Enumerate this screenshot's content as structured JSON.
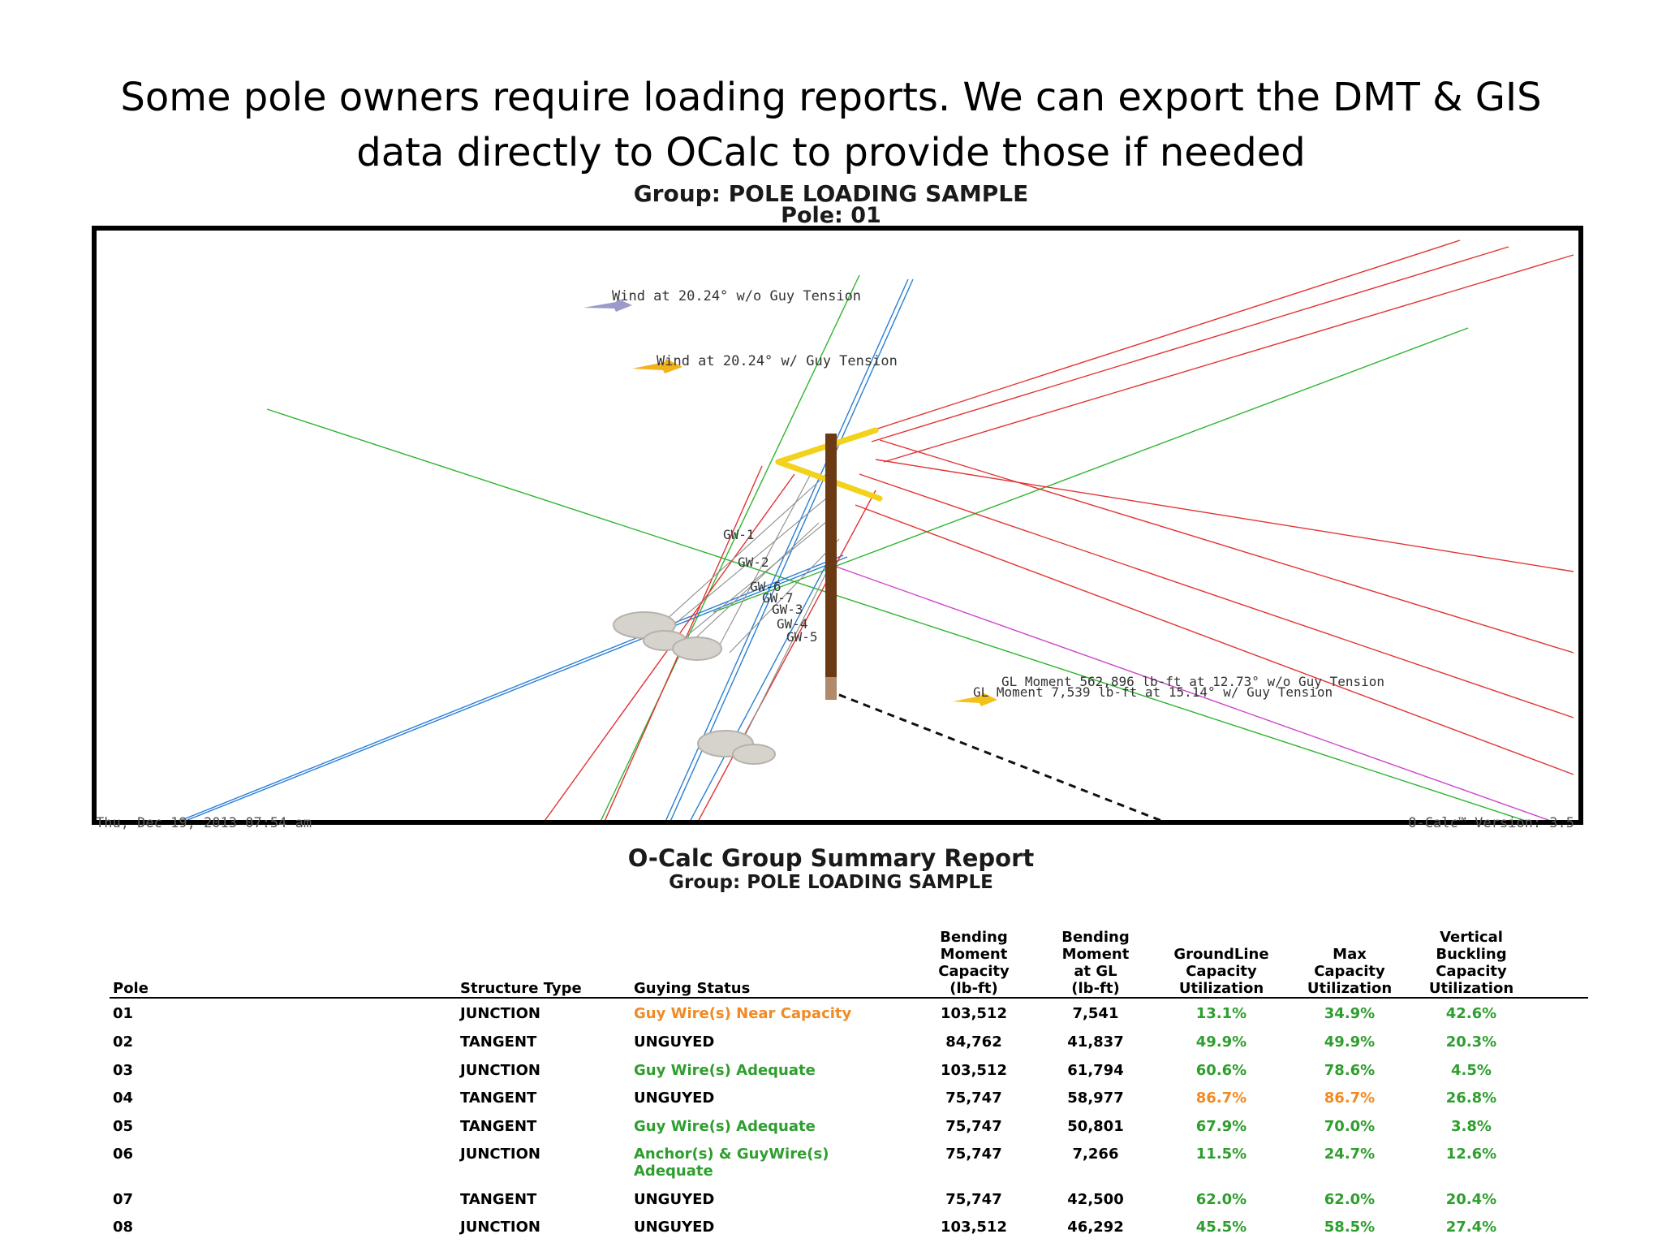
{
  "slide": {
    "title_line1": "Some pole owners require loading reports. We can export the DMT & GIS",
    "title_line2": "data directly to OCalc to provide those if needed"
  },
  "plot": {
    "group_label": "Group: POLE LOADING SAMPLE",
    "pole_label": "Pole: 01",
    "wind_without_guy": "Wind at 20.24° w/o Guy Tension",
    "wind_with_guy": "Wind at 20.24° w/ Guy Tension",
    "gl_moment_without_guy": "GL Moment 562,896 lb-ft at 12.73° w/o Guy Tension",
    "gl_moment_with_guy": "GL Moment 7,539 lb-ft at 15.14° w/ Guy Tension",
    "guy_labels": [
      "GW-1",
      "GW-2",
      "GW-6",
      "GW-7",
      "GW-3",
      "GW-4",
      "GW-5"
    ],
    "timestamp": "Thu, Dec 19, 2013 07:54 am",
    "version": "O-Calc™ Version: 3.5",
    "colors": {
      "pole": "#6b3a12",
      "crossarm": "#f2d21b",
      "green_line": "#2fb52f",
      "red_line": "#e23333",
      "blue_line": "#2a7fd4",
      "magenta_line": "#cc44cc",
      "guy_line": "#8c8c8c"
    }
  },
  "report": {
    "title": "O-Calc Group Summary Report",
    "group": "Group: POLE LOADING SAMPLE",
    "headers": {
      "pole": "Pole",
      "structure_type": "Structure Type",
      "guying_status": "Guying Status",
      "bending_moment_capacity": "Bending\nMoment\nCapacity\n(lb-ft)",
      "bending_moment_gl": "Bending\nMoment\nat GL\n(lb-ft)",
      "groundline_utilization": "GroundLine\nCapacity\nUtilization",
      "max_utilization": "Max\nCapacity\nUtilization",
      "vertical_buckling": "Vertical\nBuckling\nCapacity\nUtilization"
    },
    "rows": [
      {
        "pole": "01",
        "type": "JUNCTION",
        "guying": "Guy Wire(s) Near Capacity",
        "guying_color": "#f08a24",
        "bmc": "103,512",
        "bmg": "7,541",
        "glu": "13.1%",
        "glu_color": "#2e9e2e",
        "max": "34.9%",
        "max_color": "#2e9e2e",
        "vbc": "42.6%",
        "vbc_color": "#2e9e2e"
      },
      {
        "pole": "02",
        "type": "TANGENT",
        "guying": "UNGUYED",
        "guying_color": "#000000",
        "bmc": "84,762",
        "bmg": "41,837",
        "glu": "49.9%",
        "glu_color": "#2e9e2e",
        "max": "49.9%",
        "max_color": "#2e9e2e",
        "vbc": "20.3%",
        "vbc_color": "#2e9e2e"
      },
      {
        "pole": "03",
        "type": "JUNCTION",
        "guying": "Guy Wire(s) Adequate",
        "guying_color": "#2e9e2e",
        "bmc": "103,512",
        "bmg": "61,794",
        "glu": "60.6%",
        "glu_color": "#2e9e2e",
        "max": "78.6%",
        "max_color": "#2e9e2e",
        "vbc": "4.5%",
        "vbc_color": "#2e9e2e"
      },
      {
        "pole": "04",
        "type": "TANGENT",
        "guying": "UNGUYED",
        "guying_color": "#000000",
        "bmc": "75,747",
        "bmg": "58,977",
        "glu": "86.7%",
        "glu_color": "#f08a24",
        "max": "86.7%",
        "max_color": "#f08a24",
        "vbc": "26.8%",
        "vbc_color": "#2e9e2e"
      },
      {
        "pole": "05",
        "type": "TANGENT",
        "guying": "Guy Wire(s) Adequate",
        "guying_color": "#2e9e2e",
        "bmc": "75,747",
        "bmg": "50,801",
        "glu": "67.9%",
        "glu_color": "#2e9e2e",
        "max": "70.0%",
        "max_color": "#2e9e2e",
        "vbc": "3.8%",
        "vbc_color": "#2e9e2e"
      },
      {
        "pole": "06",
        "type": "JUNCTION",
        "guying": "Anchor(s) & GuyWire(s) Adequate",
        "guying_color": "#2e9e2e",
        "bmc": "75,747",
        "bmg": "7,266",
        "glu": "11.5%",
        "glu_color": "#2e9e2e",
        "max": "24.7%",
        "max_color": "#2e9e2e",
        "vbc": "12.6%",
        "vbc_color": "#2e9e2e"
      },
      {
        "pole": "07",
        "type": "TANGENT",
        "guying": "UNGUYED",
        "guying_color": "#000000",
        "bmc": "75,747",
        "bmg": "42,500",
        "glu": "62.0%",
        "glu_color": "#2e9e2e",
        "max": "62.0%",
        "max_color": "#2e9e2e",
        "vbc": "20.4%",
        "vbc_color": "#2e9e2e"
      },
      {
        "pole": "08",
        "type": "JUNCTION",
        "guying": "UNGUYED",
        "guying_color": "#000000",
        "bmc": "103,512",
        "bmg": "46,292",
        "glu": "45.5%",
        "glu_color": "#2e9e2e",
        "max": "58.5%",
        "max_color": "#2e9e2e",
        "vbc": "27.4%",
        "vbc_color": "#2e9e2e"
      }
    ]
  }
}
